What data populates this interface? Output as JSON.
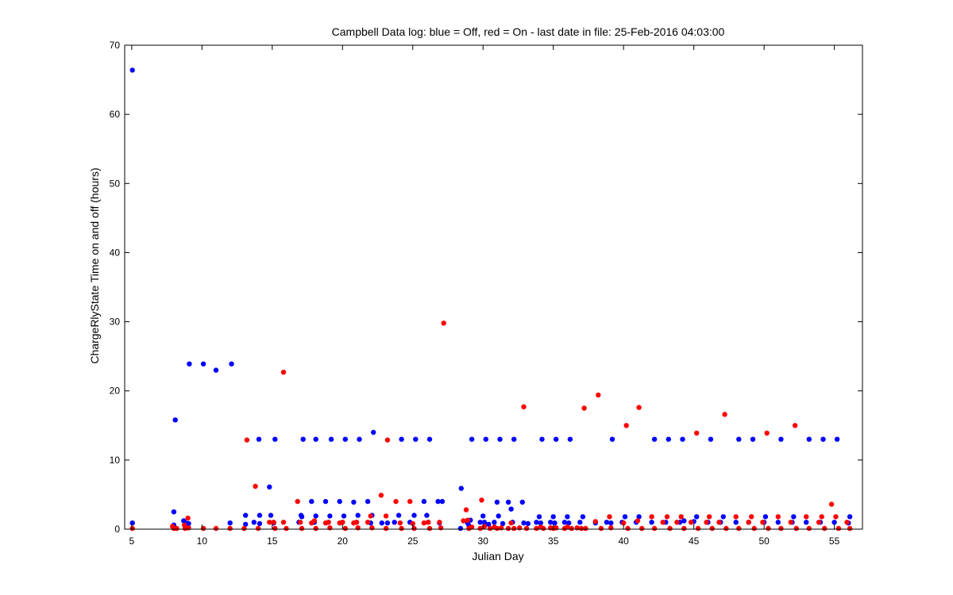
{
  "chart_data": {
    "type": "scatter",
    "title": "Campbell Data log: blue = Off, red = On -  last date in file: 25-Feb-2016 04:03:00",
    "xlabel": "Julian Day",
    "ylabel": "ChargeRlyState Time on and off (hours)",
    "xlim": [
      4.5,
      57
    ],
    "ylim": [
      0,
      70
    ],
    "xticks": [
      5,
      10,
      15,
      20,
      25,
      30,
      35,
      40,
      45,
      50,
      55
    ],
    "yticks": [
      0,
      10,
      20,
      30,
      40,
      50,
      60,
      70
    ],
    "grid": false,
    "legend": "none",
    "marker": "dot",
    "series": [
      {
        "color": "#0000ff",
        "points": [
          [
            5.05,
            66.4
          ],
          [
            5.05,
            0.9
          ],
          [
            8.0,
            2.5
          ],
          [
            8.1,
            15.8
          ],
          [
            8.0,
            0.6
          ],
          [
            8.7,
            1.2
          ],
          [
            8.85,
            0.9
          ],
          [
            9.05,
            0.8
          ],
          [
            9.1,
            23.9
          ],
          [
            10.1,
            23.9
          ],
          [
            11.0,
            23.0
          ],
          [
            12.1,
            23.9
          ],
          [
            12.0,
            0.9
          ],
          [
            13.1,
            2.0
          ],
          [
            13.1,
            0.7
          ],
          [
            13.7,
            1.0
          ],
          [
            14.05,
            13.0
          ],
          [
            14.1,
            2.0
          ],
          [
            14.1,
            0.8
          ],
          [
            14.8,
            6.1
          ],
          [
            14.9,
            2.0
          ],
          [
            15.2,
            13.0
          ],
          [
            15.1,
            0.9
          ],
          [
            16.9,
            1.0
          ],
          [
            17.05,
            2.0
          ],
          [
            17.1,
            1.8
          ],
          [
            17.2,
            13.0
          ],
          [
            17.8,
            4.0
          ],
          [
            18.1,
            13.0
          ],
          [
            18.1,
            1.9
          ],
          [
            18.0,
            1.0
          ],
          [
            18.8,
            4.0
          ],
          [
            19.2,
            13.0
          ],
          [
            19.1,
            1.9
          ],
          [
            19.0,
            1.0
          ],
          [
            19.8,
            4.0
          ],
          [
            20.2,
            13.0
          ],
          [
            20.1,
            1.9
          ],
          [
            20.0,
            1.0
          ],
          [
            20.8,
            3.9
          ],
          [
            21.2,
            13.0
          ],
          [
            21.1,
            2.0
          ],
          [
            21.0,
            1.0
          ],
          [
            21.8,
            4.0
          ],
          [
            22.2,
            14.0
          ],
          [
            22.1,
            2.0
          ],
          [
            22.0,
            0.9
          ],
          [
            22.8,
            0.9
          ],
          [
            23.2,
            0.9
          ],
          [
            23.7,
            1.0
          ],
          [
            24.0,
            2.0
          ],
          [
            24.2,
            13.0
          ],
          [
            24.8,
            1.0
          ],
          [
            25.1,
            2.0
          ],
          [
            25.2,
            13.0
          ],
          [
            25.8,
            4.0
          ],
          [
            26.0,
            2.0
          ],
          [
            26.2,
            13.0
          ],
          [
            26.1,
            1.0
          ],
          [
            26.8,
            4.0
          ],
          [
            27.1,
            4.0
          ],
          [
            26.9,
            0.9
          ],
          [
            28.45,
            5.9
          ],
          [
            28.4,
            0.1
          ],
          [
            28.9,
            0.9
          ],
          [
            29.0,
            0.5
          ],
          [
            29.1,
            1.3
          ],
          [
            29.2,
            13.0
          ],
          [
            29.8,
            1.0
          ],
          [
            30.1,
            1.0
          ],
          [
            30.2,
            13.0
          ],
          [
            30.0,
            1.9
          ],
          [
            30.4,
            0.7
          ],
          [
            30.8,
            1.0
          ],
          [
            31.0,
            3.9
          ],
          [
            31.2,
            13.0
          ],
          [
            31.1,
            1.9
          ],
          [
            31.4,
            0.8
          ],
          [
            31.8,
            3.9
          ],
          [
            32.0,
            2.9
          ],
          [
            32.2,
            13.0
          ],
          [
            32.1,
            1.0
          ],
          [
            32.8,
            3.9
          ],
          [
            32.9,
            0.9
          ],
          [
            33.2,
            0.8
          ],
          [
            33.8,
            1.0
          ],
          [
            34.0,
            1.8
          ],
          [
            34.2,
            13.0
          ],
          [
            34.1,
            0.9
          ],
          [
            34.8,
            1.0
          ],
          [
            35.0,
            1.8
          ],
          [
            35.2,
            13.0
          ],
          [
            35.1,
            0.9
          ],
          [
            35.8,
            1.0
          ],
          [
            36.0,
            1.8
          ],
          [
            36.2,
            13.0
          ],
          [
            36.1,
            0.9
          ],
          [
            36.9,
            1.0
          ],
          [
            37.1,
            1.8
          ],
          [
            38.0,
            0.9
          ],
          [
            38.8,
            1.0
          ],
          [
            39.2,
            13.0
          ],
          [
            39.1,
            0.9
          ],
          [
            40.1,
            1.8
          ],
          [
            39.9,
            1.0
          ],
          [
            41.1,
            1.8
          ],
          [
            40.9,
            1.0
          ],
          [
            42.0,
            1.0
          ],
          [
            42.2,
            13.0
          ],
          [
            43.0,
            1.0
          ],
          [
            43.2,
            13.0
          ],
          [
            44.0,
            1.0
          ],
          [
            44.2,
            13.0
          ],
          [
            44.3,
            1.2
          ],
          [
            45.0,
            1.1
          ],
          [
            45.2,
            1.8
          ],
          [
            46.0,
            1.0
          ],
          [
            46.2,
            13.0
          ],
          [
            46.9,
            1.0
          ],
          [
            47.1,
            1.8
          ],
          [
            48.0,
            1.0
          ],
          [
            48.2,
            13.0
          ],
          [
            48.9,
            1.0
          ],
          [
            49.2,
            13.0
          ],
          [
            50.0,
            1.0
          ],
          [
            50.1,
            1.8
          ],
          [
            51.0,
            1.0
          ],
          [
            51.2,
            13.0
          ],
          [
            52.0,
            1.0
          ],
          [
            52.1,
            1.8
          ],
          [
            53.0,
            1.0
          ],
          [
            53.2,
            13.0
          ],
          [
            54.0,
            1.0
          ],
          [
            54.2,
            13.0
          ],
          [
            55.0,
            1.0
          ],
          [
            55.2,
            13.0
          ],
          [
            56.0,
            0.9
          ],
          [
            56.1,
            1.8
          ]
        ]
      },
      {
        "color": "#ff0000",
        "points": [
          [
            5.05,
            0.1
          ],
          [
            7.9,
            0.4
          ],
          [
            8.0,
            0.1
          ],
          [
            8.2,
            0.1
          ],
          [
            8.75,
            0.6
          ],
          [
            8.8,
            0.1
          ],
          [
            9.0,
            1.6
          ],
          [
            9.05,
            0.2
          ],
          [
            10.1,
            0.1
          ],
          [
            11.0,
            0.1
          ],
          [
            12.0,
            0.1
          ],
          [
            13.2,
            12.9
          ],
          [
            13.0,
            0.1
          ],
          [
            13.8,
            6.2
          ],
          [
            14.0,
            0.1
          ],
          [
            14.8,
            1.0
          ],
          [
            15.1,
            1.0
          ],
          [
            15.2,
            0.1
          ],
          [
            15.8,
            22.7
          ],
          [
            15.8,
            1.0
          ],
          [
            16.0,
            0.1
          ],
          [
            16.8,
            4.0
          ],
          [
            17.0,
            1.0
          ],
          [
            17.1,
            0.1
          ],
          [
            17.8,
            0.9
          ],
          [
            18.0,
            1.2
          ],
          [
            18.1,
            0.1
          ],
          [
            18.8,
            0.9
          ],
          [
            19.0,
            1.0
          ],
          [
            19.1,
            0.2
          ],
          [
            19.8,
            0.9
          ],
          [
            20.0,
            1.0
          ],
          [
            20.2,
            0.1
          ],
          [
            20.8,
            0.9
          ],
          [
            21.0,
            1.0
          ],
          [
            21.1,
            0.2
          ],
          [
            21.8,
            1.0
          ],
          [
            22.0,
            1.9
          ],
          [
            22.1,
            0.2
          ],
          [
            22.75,
            4.9
          ],
          [
            23.1,
            1.9
          ],
          [
            23.2,
            12.9
          ],
          [
            23.1,
            0.1
          ],
          [
            23.8,
            4.0
          ],
          [
            24.1,
            0.9
          ],
          [
            24.2,
            0.1
          ],
          [
            24.8,
            4.0
          ],
          [
            25.0,
            0.8
          ],
          [
            25.1,
            0.1
          ],
          [
            25.8,
            0.9
          ],
          [
            26.1,
            1.0
          ],
          [
            26.2,
            0.1
          ],
          [
            26.9,
            1.0
          ],
          [
            27.0,
            0.2
          ],
          [
            27.2,
            29.8
          ],
          [
            28.6,
            1.2
          ],
          [
            28.8,
            2.8
          ],
          [
            28.9,
            1.3
          ],
          [
            29.0,
            0.1
          ],
          [
            29.2,
            0.3
          ],
          [
            29.8,
            0.1
          ],
          [
            29.9,
            4.2
          ],
          [
            30.1,
            0.4
          ],
          [
            30.5,
            0.1
          ],
          [
            30.8,
            0.3
          ],
          [
            31.0,
            0.1
          ],
          [
            31.3,
            0.2
          ],
          [
            31.8,
            0.1
          ],
          [
            32.0,
            0.9
          ],
          [
            32.2,
            0.1
          ],
          [
            32.6,
            0.2
          ],
          [
            32.9,
            17.7
          ],
          [
            33.1,
            0.1
          ],
          [
            33.8,
            0.1
          ],
          [
            34.1,
            0.3
          ],
          [
            34.3,
            0.1
          ],
          [
            34.8,
            0.2
          ],
          [
            35.0,
            0.1
          ],
          [
            35.2,
            0.2
          ],
          [
            35.8,
            0.1
          ],
          [
            36.0,
            0.3
          ],
          [
            36.3,
            0.1
          ],
          [
            36.7,
            0.2
          ],
          [
            37.0,
            0.1
          ],
          [
            37.2,
            17.5
          ],
          [
            37.3,
            0.1
          ],
          [
            38.0,
            1.1
          ],
          [
            38.2,
            19.4
          ],
          [
            38.4,
            0.1
          ],
          [
            39.0,
            1.8
          ],
          [
            39.1,
            0.2
          ],
          [
            40.0,
            0.9
          ],
          [
            40.2,
            15.0
          ],
          [
            40.3,
            0.1
          ],
          [
            41.0,
            1.2
          ],
          [
            41.1,
            17.6
          ],
          [
            41.3,
            0.1
          ],
          [
            42.0,
            1.8
          ],
          [
            42.2,
            0.1
          ],
          [
            42.8,
            1.0
          ],
          [
            43.1,
            1.8
          ],
          [
            43.3,
            0.1
          ],
          [
            43.8,
            1.0
          ],
          [
            44.1,
            1.8
          ],
          [
            44.3,
            0.1
          ],
          [
            44.8,
            1.0
          ],
          [
            45.2,
            13.9
          ],
          [
            45.3,
            0.1
          ],
          [
            45.9,
            1.0
          ],
          [
            46.1,
            1.8
          ],
          [
            46.3,
            0.1
          ],
          [
            46.8,
            1.0
          ],
          [
            47.2,
            16.6
          ],
          [
            47.3,
            0.1
          ],
          [
            48.0,
            1.8
          ],
          [
            48.2,
            0.1
          ],
          [
            48.9,
            1.0
          ],
          [
            49.1,
            1.8
          ],
          [
            49.3,
            0.1
          ],
          [
            49.9,
            1.0
          ],
          [
            50.2,
            13.9
          ],
          [
            50.3,
            0.1
          ],
          [
            51.0,
            1.8
          ],
          [
            51.2,
            0.1
          ],
          [
            51.9,
            1.0
          ],
          [
            52.2,
            15.0
          ],
          [
            52.3,
            0.1
          ],
          [
            53.0,
            1.8
          ],
          [
            53.2,
            0.1
          ],
          [
            53.9,
            1.0
          ],
          [
            54.1,
            1.8
          ],
          [
            54.3,
            0.1
          ],
          [
            54.8,
            3.6
          ],
          [
            55.1,
            1.8
          ],
          [
            55.3,
            0.1
          ],
          [
            55.9,
            1.0
          ],
          [
            56.1,
            0.1
          ]
        ]
      }
    ]
  }
}
